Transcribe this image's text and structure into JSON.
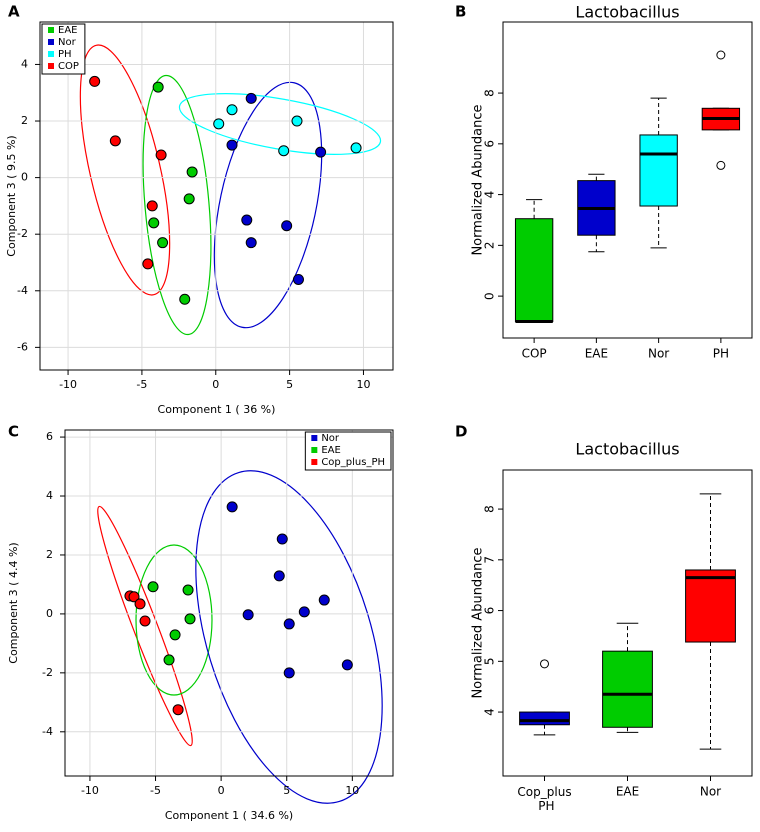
{
  "chart_data": [
    {
      "type": "scatter",
      "panel": "A",
      "xlabel": "Component 1 ( 36 %)",
      "ylabel": "Component 3 ( 9.5 %)",
      "xlim": [
        -11.9,
        12
      ],
      "ylim": [
        -6.8,
        5.5
      ],
      "xticks": [
        -10,
        -5,
        0,
        5,
        10
      ],
      "yticks": [
        -6,
        -4,
        -2,
        0,
        2,
        4
      ],
      "grid": true,
      "legend": "top-left",
      "series": [
        {
          "name": "EAE",
          "color": "#00cc00",
          "x": [
            -3.9,
            -1.6,
            -1.8,
            -4.2,
            -3.6,
            -2.1
          ],
          "y": [
            3.2,
            0.2,
            -0.75,
            -1.6,
            -2.3,
            -4.3
          ]
        },
        {
          "name": "Nor",
          "color": "#0000cc",
          "x": [
            2.4,
            1.1,
            2.1,
            2.4,
            4.8,
            5.6,
            7.1
          ],
          "y": [
            2.8,
            1.15,
            -1.5,
            -2.3,
            -1.7,
            -3.6,
            0.9
          ]
        },
        {
          "name": "PH",
          "color": "#00ffff",
          "x": [
            0.2,
            1.1,
            5.5,
            4.6,
            9.5
          ],
          "y": [
            1.9,
            2.4,
            2.0,
            0.95,
            1.05
          ]
        },
        {
          "name": "COP",
          "color": "#ff0000",
          "x": [
            -8.2,
            -6.8,
            -3.7,
            -4.3,
            -4.6
          ],
          "y": [
            3.4,
            1.3,
            0.8,
            -1.0,
            -3.05
          ]
        }
      ]
    },
    {
      "type": "box",
      "panel": "B",
      "title": "Lactobacillus",
      "ylabel": "Normalized Abundance",
      "ylim": [
        -1.65,
        10.8
      ],
      "yticks": [
        0,
        2,
        4,
        6,
        8
      ],
      "categories": [
        "COP",
        "EAE",
        "Nor",
        "PH"
      ],
      "colors": [
        "#00cc00",
        "#0000cc",
        "#00ffff",
        "#ff0000"
      ],
      "boxes": [
        {
          "min": -1.0,
          "q1": -1.0,
          "median": -1.0,
          "q3": 3.05,
          "max": 3.8,
          "outliers": []
        },
        {
          "min": 1.75,
          "q1": 2.4,
          "median": 3.45,
          "q3": 4.55,
          "max": 4.8,
          "outliers": []
        },
        {
          "min": 1.9,
          "q1": 3.55,
          "median": 5.6,
          "q3": 6.35,
          "max": 7.8,
          "outliers": []
        },
        {
          "min": 6.55,
          "q1": 6.55,
          "median": 7.0,
          "q3": 7.4,
          "max": 7.4,
          "outliers": [
            9.5,
            5.15
          ]
        }
      ]
    },
    {
      "type": "scatter",
      "panel": "C",
      "xlabel": "Component 1 ( 34.6 %)",
      "ylabel": "Component 3 ( 4.4 %)",
      "xlim": [
        -11.9,
        13.1
      ],
      "ylim": [
        -5.5,
        6.24
      ],
      "xticks": [
        -10,
        -5,
        0,
        5,
        10
      ],
      "yticks": [
        -4,
        -2,
        0,
        2,
        4,
        6
      ],
      "grid": true,
      "legend": "top-right",
      "series": [
        {
          "name": "Nor",
          "color": "#0000cc",
          "x": [
            0.84,
            4.66,
            4.43,
            7.86,
            2.06,
            6.34,
            5.19,
            5.19,
            9.62
          ],
          "y": [
            3.63,
            2.54,
            1.29,
            0.47,
            -0.03,
            0.07,
            -0.34,
            -2.0,
            -1.73
          ]
        },
        {
          "name": "EAE",
          "color": "#00cc00",
          "x": [
            -5.19,
            -2.52,
            -2.37,
            -3.51,
            -3.97
          ],
          "y": [
            0.92,
            0.81,
            -0.17,
            -0.71,
            -1.56
          ]
        },
        {
          "name": "Cop_plus_PH",
          "color": "#ff0000",
          "x": [
            -6.95,
            -6.64,
            -6.18,
            -5.8,
            -3.28
          ],
          "y": [
            0.61,
            0.58,
            0.34,
            -0.24,
            -3.25
          ]
        }
      ]
    },
    {
      "type": "box",
      "panel": "D",
      "title": "Lactobacillus",
      "ylabel": "Normalized Abundance",
      "ylim": [
        2.74,
        8.77
      ],
      "yticks": [
        4,
        5,
        6,
        7,
        8
      ],
      "categories": [
        "Cop_plus\nPH",
        "EAE",
        "Nor"
      ],
      "colors": [
        "#0000cc",
        "#00cc00",
        "#ff0000"
      ],
      "boxes": [
        {
          "min": 3.55,
          "q1": 3.75,
          "median": 3.83,
          "q3": 4.0,
          "max": 4.0,
          "outliers": [
            4.95
          ]
        },
        {
          "min": 3.6,
          "q1": 3.7,
          "median": 4.35,
          "q3": 5.2,
          "max": 5.75,
          "outliers": []
        },
        {
          "min": 3.27,
          "q1": 5.38,
          "median": 6.65,
          "q3": 6.8,
          "max": 8.3,
          "outliers": []
        }
      ]
    }
  ]
}
